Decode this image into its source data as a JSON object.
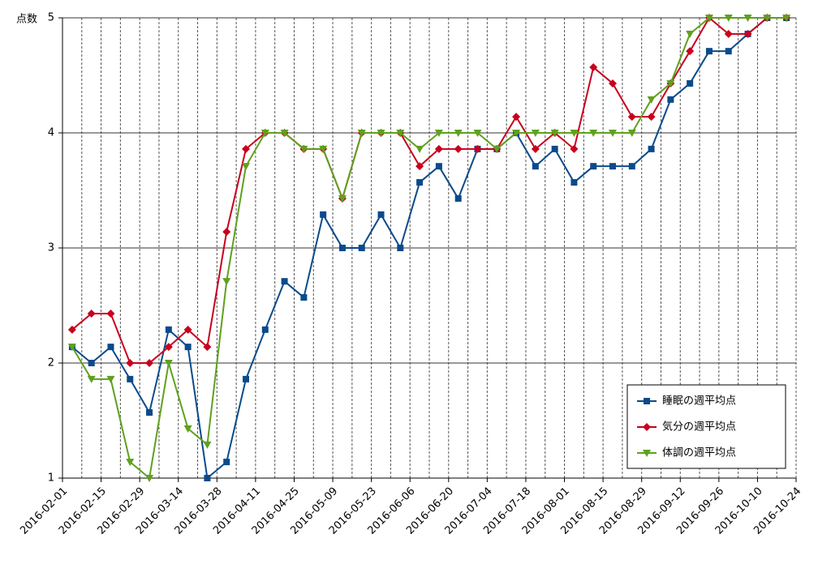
{
  "chart_data": {
    "type": "line",
    "y_label": "点数",
    "ylim": [
      1,
      5
    ],
    "yticks": [
      1,
      2,
      3,
      4,
      5
    ],
    "grid": true,
    "xticks": [
      "2016-02-01",
      "2016-02-15",
      "2016-02-29",
      "2016-03-14",
      "2016-03-28",
      "2016-04-11",
      "2016-04-25",
      "2016-05-09",
      "2016-05-23",
      "2016-06-06",
      "2016-06-20",
      "2016-07-04",
      "2016-07-18",
      "2016-08-01",
      "2016-08-15",
      "2016-08-29",
      "2016-09-12",
      "2016-09-26",
      "2016-10-10",
      "2016-10-24"
    ],
    "legend": "lower right",
    "series": [
      {
        "name": "睡眠の週平均点",
        "color": "#0b4a8b",
        "marker": "square",
        "values": [
          2.14,
          2.0,
          2.14,
          1.86,
          1.57,
          2.29,
          2.14,
          1.0,
          1.14,
          1.86,
          2.29,
          2.71,
          2.57,
          3.29,
          3.0,
          3.0,
          3.29,
          3.0,
          3.57,
          3.71,
          3.43,
          3.86,
          3.86,
          4.0,
          3.71,
          3.86,
          3.57,
          3.71,
          3.71,
          3.71,
          3.86,
          4.29,
          4.43,
          4.71,
          4.71,
          4.86,
          5,
          5
        ]
      },
      {
        "name": "気分の週平均点",
        "color": "#c8001e",
        "marker": "diamond",
        "values": [
          2.29,
          2.43,
          2.43,
          2.0,
          2.0,
          2.14,
          2.29,
          2.14,
          3.14,
          3.86,
          4.0,
          4.0,
          3.86,
          3.86,
          3.43,
          4.0,
          4.0,
          4.0,
          3.71,
          3.86,
          3.86,
          3.86,
          3.86,
          4.14,
          3.86,
          4.0,
          3.86,
          4.57,
          4.43,
          4.14,
          4.14,
          4.43,
          4.71,
          5.0,
          4.86,
          4.86,
          5.0,
          5.0
        ]
      },
      {
        "name": "体調の週平均点",
        "color": "#5fa01e",
        "marker": "triangle-down",
        "values": [
          2.14,
          1.86,
          1.86,
          1.14,
          1.0,
          2.0,
          1.43,
          1.29,
          2.71,
          3.71,
          4.0,
          4.0,
          3.86,
          3.86,
          3.43,
          4.0,
          4.0,
          4.0,
          3.86,
          4.0,
          4.0,
          4.0,
          3.86,
          4.0,
          4.0,
          4.0,
          4.0,
          4.0,
          4.0,
          4.0,
          4.29,
          4.43,
          4.86,
          5,
          5,
          5,
          5,
          5
        ]
      }
    ]
  }
}
